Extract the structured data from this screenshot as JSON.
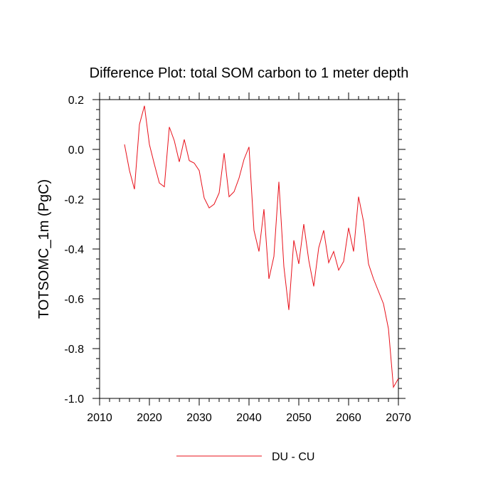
{
  "chart_data": {
    "type": "line",
    "title": "Difference Plot: total SOM carbon to 1 meter depth",
    "xlabel": "",
    "ylabel": "TOTSOMC_1m  (PgC)",
    "xlim": [
      2010,
      2070
    ],
    "ylim": [
      -1.0,
      0.2
    ],
    "x_ticks": [
      2010,
      2020,
      2030,
      2040,
      2050,
      2060,
      2070
    ],
    "y_ticks": [
      0.2,
      0.0,
      -0.2,
      -0.4,
      -0.6,
      -0.8,
      -1.0
    ],
    "x_tick_labels": [
      "2010",
      "2020",
      "2030",
      "2040",
      "2050",
      "2060",
      "2070"
    ],
    "y_tick_labels": [
      "0.2",
      "0.0",
      "-0.2",
      "-0.4",
      "-0.6",
      "-0.8",
      "-1.0"
    ],
    "grid": false,
    "legend_position": "bottom",
    "series": [
      {
        "name": "DU - CU",
        "color": "#e8101a",
        "x": [
          2015,
          2016,
          2017,
          2018,
          2019,
          2020,
          2021,
          2022,
          2023,
          2024,
          2025,
          2026,
          2027,
          2028,
          2029,
          2030,
          2031,
          2032,
          2033,
          2034,
          2035,
          2036,
          2037,
          2038,
          2039,
          2040,
          2041,
          2042,
          2043,
          2044,
          2045,
          2046,
          2047,
          2048,
          2049,
          2050,
          2051,
          2052,
          2053,
          2054,
          2055,
          2056,
          2057,
          2058,
          2059,
          2060,
          2061,
          2062,
          2063,
          2064,
          2065,
          2066,
          2067,
          2068,
          2069,
          2070
        ],
        "values": [
          0.02,
          -0.085,
          -0.16,
          0.1,
          0.175,
          0.02,
          -0.06,
          -0.135,
          -0.15,
          0.09,
          0.035,
          -0.05,
          0.04,
          -0.045,
          -0.055,
          -0.085,
          -0.195,
          -0.235,
          -0.22,
          -0.175,
          -0.015,
          -0.19,
          -0.17,
          -0.115,
          -0.04,
          0.01,
          -0.325,
          -0.41,
          -0.24,
          -0.52,
          -0.43,
          -0.13,
          -0.47,
          -0.645,
          -0.365,
          -0.46,
          -0.3,
          -0.445,
          -0.55,
          -0.395,
          -0.325,
          -0.455,
          -0.41,
          -0.485,
          -0.45,
          -0.315,
          -0.41,
          -0.19,
          -0.29,
          -0.46,
          -0.52,
          -0.57,
          -0.62,
          -0.72,
          -0.955,
          -0.92
        ]
      }
    ]
  }
}
